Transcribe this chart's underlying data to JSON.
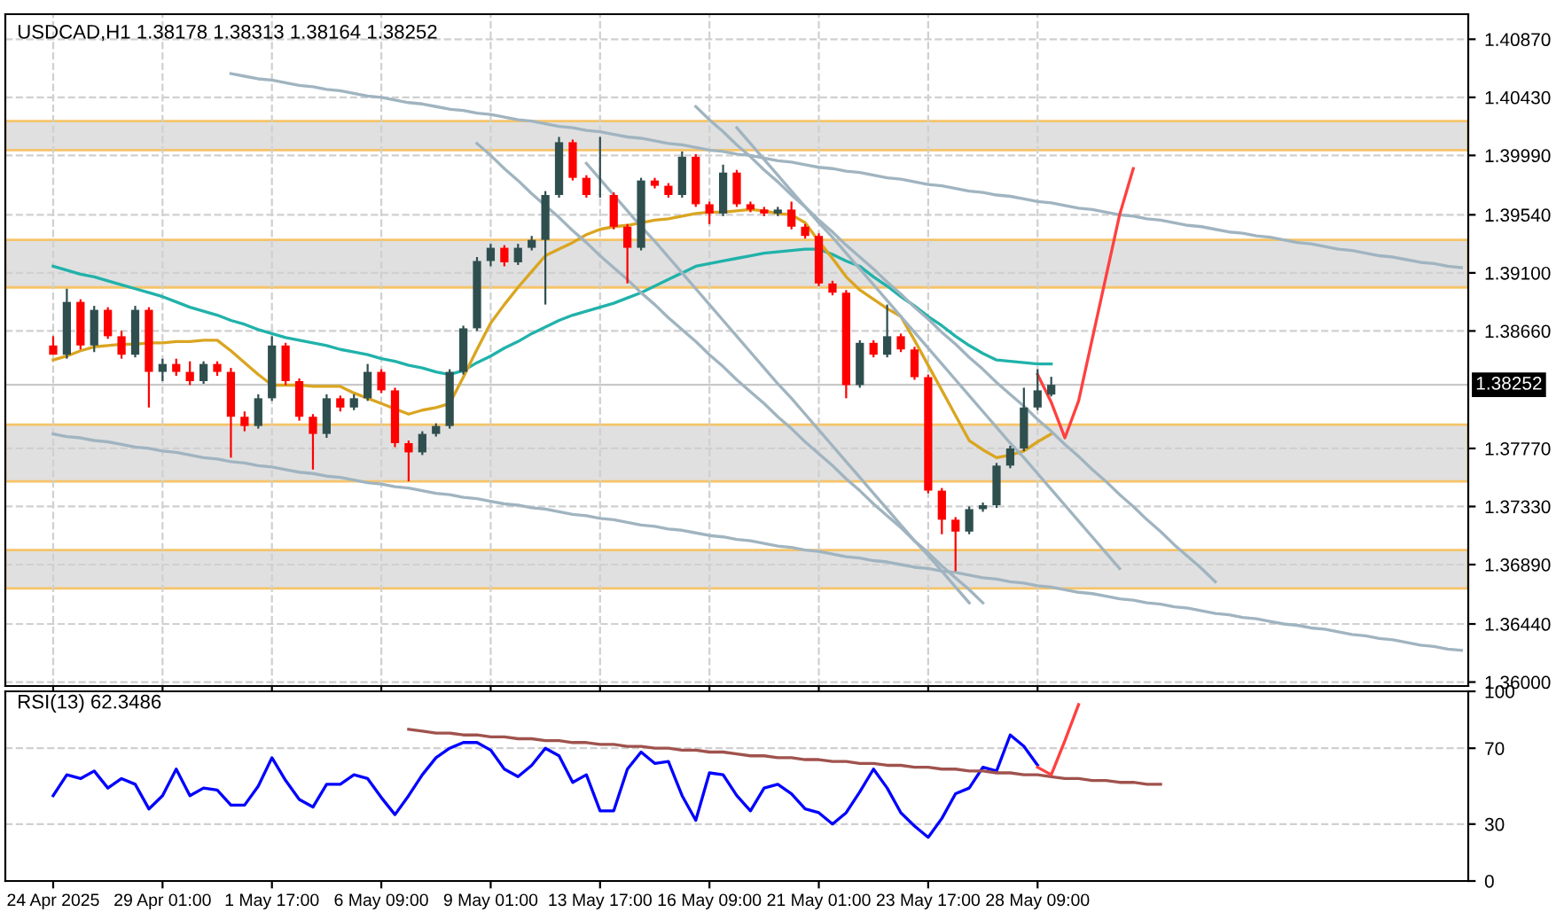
{
  "chart_data": [
    {
      "type": "candlestick",
      "title": "USDCAD,H1 1.38178 1.38313 1.38164 1.38252",
      "categories": [
        null,
        null,
        null,
        null,
        null,
        null,
        null,
        null,
        null,
        null,
        null,
        null,
        null,
        null,
        null,
        null,
        null,
        null,
        null,
        null,
        null,
        null,
        null,
        null,
        null,
        null,
        null,
        null,
        null,
        null,
        null,
        null,
        null,
        null,
        null,
        null,
        null,
        null,
        null,
        null,
        null,
        null,
        null,
        null,
        null,
        null,
        null,
        null,
        null,
        null,
        null,
        null,
        null,
        null,
        null,
        null,
        null,
        null,
        null,
        null,
        null,
        null,
        null,
        null,
        null,
        null,
        null,
        null,
        null,
        null,
        null,
        null,
        null,
        null,
        null,
        null,
        null,
        null,
        null,
        null,
        null,
        null,
        null,
        null,
        null,
        null,
        null,
        null,
        null,
        null,
        null,
        null,
        null,
        null,
        null,
        null,
        null,
        null,
        null,
        null,
        null,
        null,
        null,
        null
      ],
      "ohlc": [
        [
          1.3855,
          1.3862,
          1.3848,
          1.3848
        ],
        [
          1.3848,
          1.3898,
          1.3845,
          1.3888
        ],
        [
          1.3888,
          1.389,
          1.3852,
          1.3855
        ],
        [
          1.3855,
          1.3885,
          1.385,
          1.3882
        ],
        [
          1.3882,
          1.3884,
          1.386,
          1.3862
        ],
        [
          1.3862,
          1.3866,
          1.3845,
          1.3848
        ],
        [
          1.3848,
          1.3885,
          1.3846,
          1.3882
        ],
        [
          1.3882,
          1.3884,
          1.3808,
          1.3835
        ],
        [
          1.3835,
          1.3845,
          1.3828,
          1.3841
        ],
        [
          1.3841,
          1.3845,
          1.3832,
          1.3835
        ],
        [
          1.3835,
          1.3843,
          1.3825,
          1.3828
        ],
        [
          1.3828,
          1.3843,
          1.3826,
          1.3841
        ],
        [
          1.3841,
          1.3843,
          1.3832,
          1.3835
        ],
        [
          1.3835,
          1.3838,
          1.377,
          1.3801
        ],
        [
          1.3801,
          1.3805,
          1.379,
          1.3794
        ],
        [
          1.3794,
          1.3818,
          1.3792,
          1.3815
        ],
        [
          1.3815,
          1.3862,
          1.3813,
          1.3855
        ],
        [
          1.3855,
          1.3857,
          1.3825,
          1.3828
        ],
        [
          1.3828,
          1.383,
          1.3798,
          1.3801
        ],
        [
          1.3801,
          1.3803,
          1.3761,
          1.3788
        ],
        [
          1.3788,
          1.3818,
          1.3785,
          1.3815
        ],
        [
          1.3815,
          1.3817,
          1.3805,
          1.3808
        ],
        [
          1.3808,
          1.3818,
          1.3806,
          1.3815
        ],
        [
          1.3815,
          1.3841,
          1.3813,
          1.3835
        ],
        [
          1.3835,
          1.3837,
          1.3819,
          1.3821
        ],
        [
          1.3821,
          1.3823,
          1.3778,
          1.3781
        ],
        [
          1.3781,
          1.3783,
          1.3752,
          1.3774
        ],
        [
          1.3774,
          1.379,
          1.3772,
          1.3788
        ],
        [
          1.3788,
          1.3796,
          1.3786,
          1.3794
        ],
        [
          1.3794,
          1.3837,
          1.3792,
          1.3835
        ],
        [
          1.3835,
          1.387,
          1.3833,
          1.3868
        ],
        [
          1.3868,
          1.3922,
          1.3866,
          1.3919
        ],
        [
          1.3919,
          1.3932,
          1.3915,
          1.3929
        ],
        [
          1.3929,
          1.3931,
          1.3915,
          1.3918
        ],
        [
          1.3918,
          1.3932,
          1.3916,
          1.3929
        ],
        [
          1.3929,
          1.3938,
          1.3927,
          1.3935
        ],
        [
          1.3935,
          1.3972,
          1.3886,
          1.3969
        ],
        [
          1.3969,
          1.4013,
          1.3967,
          1.4009
        ],
        [
          1.4009,
          1.4011,
          1.398,
          1.3982
        ],
        [
          1.3982,
          1.3984,
          1.3967,
          1.3969
        ],
        [
          1.3969,
          1.4013,
          1.3967,
          1.3969
        ],
        [
          1.3969,
          1.3971,
          1.3943,
          1.3945
        ],
        [
          1.3945,
          1.3947,
          1.3902,
          1.3929
        ],
        [
          1.3929,
          1.3982,
          1.3927,
          1.398
        ],
        [
          1.398,
          1.3982,
          1.3974,
          1.3976
        ],
        [
          1.3976,
          1.3978,
          1.3967,
          1.3969
        ],
        [
          1.3969,
          1.4002,
          1.3967,
          1.3998
        ],
        [
          1.3998,
          1.4,
          1.396,
          1.3962
        ],
        [
          1.3962,
          1.3964,
          1.3947,
          1.3955
        ],
        [
          1.3955,
          1.3992,
          1.3953,
          1.3986
        ],
        [
          1.3986,
          1.3988,
          1.396,
          1.3962
        ],
        [
          1.3962,
          1.3964,
          1.3956,
          1.3958
        ],
        [
          1.3958,
          1.396,
          1.3953,
          1.3955
        ],
        [
          1.3955,
          1.396,
          1.3953,
          1.3958
        ],
        [
          1.3958,
          1.3964,
          1.3943,
          1.3945
        ],
        [
          1.3945,
          1.3947,
          1.3936,
          1.3938
        ],
        [
          1.3938,
          1.394,
          1.39,
          1.3902
        ],
        [
          1.3902,
          1.3904,
          1.3893,
          1.3895
        ],
        [
          1.3895,
          1.3897,
          1.3815,
          1.3825
        ],
        [
          1.3825,
          1.3859,
          1.3823,
          1.3857
        ],
        [
          1.3857,
          1.3859,
          1.3846,
          1.3848
        ],
        [
          1.3848,
          1.3886,
          1.3846,
          1.3862
        ],
        [
          1.3862,
          1.3864,
          1.385,
          1.3852
        ],
        [
          1.3852,
          1.3854,
          1.3829,
          1.3831
        ],
        [
          1.3831,
          1.3833,
          1.3743,
          1.3745
        ],
        [
          1.3745,
          1.3747,
          1.3712,
          1.3723
        ],
        [
          1.3723,
          1.3725,
          1.3684,
          1.3714
        ],
        [
          1.3714,
          1.3733,
          1.3712,
          1.3731
        ],
        [
          1.3731,
          1.3736,
          1.3729,
          1.3734
        ],
        [
          1.3734,
          1.3766,
          1.3732,
          1.3764
        ],
        [
          1.3764,
          1.3779,
          1.3762,
          1.3777
        ],
        [
          1.3777,
          1.3823,
          1.3775,
          1.3808
        ],
        [
          1.3808,
          1.3837,
          1.3806,
          1.3821
        ],
        [
          1.38178,
          1.38313,
          1.38164,
          1.38252
        ],
        null,
        null,
        null,
        null,
        null,
        null,
        null,
        null,
        null,
        null,
        null,
        null,
        null,
        null,
        null,
        null,
        null,
        null,
        null,
        null,
        null,
        null,
        null,
        null,
        null,
        null,
        null,
        null,
        null,
        null
      ],
      "colors": [
        "#ff0000",
        "#2f4f4f",
        "#ff0000",
        "#2f4f4f",
        "#ff0000",
        "#ff0000",
        "#2f4f4f",
        "#ff0000",
        "#2f4f4f",
        "#ff0000",
        "#ff0000",
        "#2f4f4f",
        "#ff0000",
        "#ff0000",
        "#ff0000",
        "#2f4f4f",
        "#2f4f4f",
        "#ff0000",
        "#ff0000",
        "#ff0000",
        "#2f4f4f",
        "#ff0000",
        "#2f4f4f",
        "#2f4f4f",
        "#ff0000",
        "#ff0000",
        "#ff0000",
        "#2f4f4f",
        "#2f4f4f",
        "#2f4f4f",
        "#2f4f4f",
        "#2f4f4f",
        "#2f4f4f",
        "#ff0000",
        "#2f4f4f",
        "#2f4f4f",
        "#2f4f4f",
        "#2f4f4f",
        "#ff0000",
        "#ff0000",
        "#2f4f4f",
        "#ff0000",
        "#ff0000",
        "#2f4f4f",
        "#ff0000",
        "#ff0000",
        "#2f4f4f",
        "#ff0000",
        "#ff0000",
        "#2f4f4f",
        "#ff0000",
        "#ff0000",
        "#ff0000",
        "#2f4f4f",
        "#ff0000",
        "#ff0000",
        "#ff0000",
        "#ff0000",
        "#ff0000",
        "#2f4f4f",
        "#ff0000",
        "#2f4f4f",
        "#ff0000",
        "#ff0000",
        "#ff0000",
        "#ff0000",
        "#ff0000",
        "#2f4f4f",
        "#2f4f4f",
        "#2f4f4f",
        "#2f4f4f",
        "#2f4f4f",
        "#2f4f4f",
        "#2f4f4f",
        null,
        null,
        null,
        null,
        null,
        null,
        null,
        null,
        null,
        null,
        null,
        null,
        null,
        null,
        null,
        null,
        null,
        null,
        null,
        null,
        null,
        null,
        null,
        null,
        null,
        null,
        null,
        null,
        null,
        null
      ],
      "series": [
        {
          "type": "line",
          "color": "#20b2aa",
          "values": [
            1.3915,
            1.3912,
            1.3909,
            1.3907,
            1.3904,
            1.3901,
            1.3898,
            1.3895,
            1.3892,
            1.3888,
            1.3884,
            1.3881,
            1.3878,
            1.3874,
            1.3871,
            1.3867,
            1.3864,
            1.3861,
            1.3859,
            1.3857,
            1.3855,
            1.3852,
            1.385,
            1.3848,
            1.3845,
            1.3843,
            1.384,
            1.3838,
            1.3835,
            1.3833,
            1.3836,
            1.3842,
            1.3847,
            1.3853,
            1.3858,
            1.3864,
            1.3869,
            1.3874,
            1.3878,
            1.3881,
            1.3884,
            1.3887,
            1.3891,
            1.3895,
            1.39,
            1.3905,
            1.391,
            1.3915,
            1.3917,
            1.3919,
            1.3921,
            1.3923,
            1.3925,
            1.3926,
            1.3927,
            1.3928,
            1.3928,
            1.3924,
            1.3919,
            1.3915,
            1.3907,
            1.39,
            1.3892,
            1.3885,
            1.3877,
            1.387,
            1.3862,
            1.3855,
            1.3849,
            1.3844,
            1.3843,
            1.3842,
            1.3841,
            1.3841,
            null,
            null,
            null,
            null,
            null,
            null,
            null,
            null,
            null,
            null,
            null,
            null,
            null,
            null,
            null,
            null,
            null,
            null,
            null,
            null,
            null,
            null,
            null,
            null,
            null,
            null,
            null,
            null,
            null,
            null
          ]
        },
        {
          "type": "line",
          "color": "#daa520",
          "values": [
            1.3844,
            1.3847,
            1.3851,
            1.3854,
            1.3855,
            1.3856,
            1.3856,
            1.3857,
            1.3857,
            1.3858,
            1.3858,
            1.3859,
            1.3859,
            1.3851,
            1.3842,
            1.3833,
            1.3825,
            1.3825,
            1.3825,
            1.3824,
            1.3824,
            1.3824,
            1.3819,
            1.3815,
            1.3811,
            1.3807,
            1.3803,
            1.3806,
            1.3808,
            1.3811,
            1.3831,
            1.3852,
            1.3872,
            1.3886,
            1.3899,
            1.3911,
            1.3923,
            1.3928,
            1.3933,
            1.3939,
            1.3943,
            1.3945,
            1.3946,
            1.3948,
            1.395,
            1.3951,
            1.3953,
            1.3955,
            1.3956,
            1.3956,
            1.3957,
            1.3958,
            1.3957,
            1.3955,
            1.3954,
            1.3948,
            1.3934,
            1.3921,
            1.3907,
            1.3897,
            1.389,
            1.3883,
            1.3877,
            1.3859,
            1.384,
            1.3821,
            1.3802,
            1.3783,
            1.3776,
            1.377,
            1.3772,
            1.3775,
            1.3782,
            1.3788,
            null,
            null,
            null,
            null,
            null,
            null,
            null,
            null,
            null,
            null,
            null,
            null,
            null,
            null,
            null,
            null,
            null,
            null,
            null,
            null,
            null,
            null,
            null,
            null,
            null,
            null,
            null,
            null,
            null,
            null
          ]
        },
        {
          "type": "line",
          "color": "#a0b4c0",
          "values": [
            null,
            null,
            null,
            null,
            null,
            null,
            null,
            null,
            null,
            null,
            null,
            null,
            null,
            1.4061,
            1.4059,
            1.4057,
            1.4056,
            1.4054,
            1.4052,
            1.4051,
            1.4049,
            1.4048,
            1.4046,
            1.4044,
            1.4043,
            1.4041,
            1.4039,
            1.4038,
            1.4036,
            1.4034,
            1.4033,
            1.4031,
            1.403,
            1.4028,
            1.4026,
            1.4025,
            1.4023,
            1.4021,
            1.402,
            1.4018,
            1.4017,
            1.4015,
            1.4013,
            1.4012,
            1.401,
            1.4008,
            1.4007,
            1.4005,
            1.4003,
            1.4002,
            1.4,
            1.3999,
            1.3997,
            1.3995,
            1.3994,
            1.3992,
            1.399,
            1.3989,
            1.3987,
            1.3986,
            1.3984,
            1.3982,
            1.3981,
            1.3979,
            1.3977,
            1.3976,
            1.3974,
            1.3972,
            1.3971,
            1.3969,
            1.3968,
            1.3966,
            1.3964,
            1.3963,
            1.3961,
            1.3959,
            1.3958,
            1.3956,
            1.3954,
            1.3953,
            1.3951,
            1.395,
            1.3948,
            1.3946,
            1.3945,
            1.3943,
            1.3941,
            1.394,
            1.3938,
            1.3937,
            1.3935,
            1.3933,
            1.3932,
            1.393,
            1.3928,
            1.3927,
            1.3925,
            1.3923,
            1.3922,
            1.392,
            1.3918,
            1.3917,
            1.3915,
            1.3914
          ]
        },
        {
          "type": "line",
          "color": "#a0b4c0",
          "values": [
            1.3788,
            1.3786,
            1.3785,
            1.3783,
            1.3782,
            1.378,
            1.3778,
            1.3777,
            1.3775,
            1.3774,
            1.3772,
            1.377,
            1.3769,
            1.3767,
            1.3766,
            1.3764,
            1.3763,
            1.3761,
            1.3759,
            1.3758,
            1.3756,
            1.3755,
            1.3753,
            1.3751,
            1.375,
            1.3748,
            1.3747,
            1.3745,
            1.3743,
            1.3742,
            1.374,
            1.3739,
            1.3737,
            1.3735,
            1.3734,
            1.3732,
            1.3731,
            1.3729,
            1.3727,
            1.3726,
            1.3724,
            1.3723,
            1.3721,
            1.3719,
            1.3718,
            1.3716,
            1.3715,
            1.3713,
            1.3711,
            1.371,
            1.3708,
            1.3707,
            1.3705,
            1.3703,
            1.3702,
            1.37,
            1.3699,
            1.3697,
            1.3695,
            1.3694,
            1.3692,
            1.3691,
            1.3689,
            1.3687,
            1.3686,
            1.3684,
            1.3683,
            1.3681,
            1.3679,
            1.3678,
            1.3676,
            1.3675,
            1.3673,
            1.3672,
            1.367,
            1.3668,
            1.3667,
            1.3665,
            1.3663,
            1.3662,
            1.366,
            1.3659,
            1.3657,
            1.3656,
            1.3654,
            1.3652,
            1.3651,
            1.3649,
            1.3648,
            1.3646,
            1.3644,
            1.3643,
            1.3641,
            1.364,
            1.3638,
            1.3636,
            1.3635,
            1.3633,
            1.3632,
            1.363,
            1.3628,
            1.3627,
            1.3625,
            1.3624
          ]
        },
        {
          "type": "line",
          "color": "#a0b4c0",
          "values": [
            null,
            null,
            null,
            null,
            null,
            null,
            null,
            null,
            null,
            null,
            null,
            null,
            null,
            null,
            null,
            null,
            null,
            null,
            null,
            null,
            null,
            null,
            null,
            null,
            null,
            null,
            null,
            null,
            null,
            null,
            null,
            1.4008,
            1.3999,
            1.3989,
            1.398,
            1.397,
            1.3961,
            1.3952,
            1.3942,
            1.3933,
            1.3923,
            1.3914,
            1.3905,
            1.3895,
            1.3886,
            1.3876,
            1.3867,
            1.3858,
            1.3848,
            1.3839,
            1.3829,
            1.382,
            1.3811,
            1.3801,
            1.3792,
            1.3782,
            1.3773,
            1.3764,
            1.3754,
            1.3745,
            1.3735,
            1.3726,
            1.3717,
            1.3707,
            1.3698,
            1.3688,
            1.3679,
            1.367,
            1.366,
            null,
            null,
            null,
            null,
            null,
            null,
            null,
            null,
            null,
            null,
            null,
            null,
            null,
            null,
            null,
            null,
            null,
            null,
            null,
            null,
            null,
            null,
            null,
            null,
            null,
            null,
            null,
            null,
            null,
            null,
            null,
            null,
            null,
            null,
            null
          ]
        },
        {
          "type": "line",
          "color": "#a0b4c0",
          "values": [
            null,
            null,
            null,
            null,
            null,
            null,
            null,
            null,
            null,
            null,
            null,
            null,
            null,
            null,
            null,
            null,
            null,
            null,
            null,
            null,
            null,
            null,
            null,
            null,
            null,
            null,
            null,
            null,
            null,
            null,
            null,
            null,
            null,
            null,
            null,
            null,
            null,
            null,
            null,
            1.3993,
            1.3981,
            1.3969,
            1.3957,
            1.3945,
            1.3934,
            1.3922,
            1.391,
            1.3898,
            1.3886,
            1.3874,
            1.3862,
            1.385,
            1.3838,
            1.3826,
            1.3815,
            1.3803,
            1.3791,
            1.3779,
            1.3767,
            1.3755,
            1.3743,
            1.3731,
            1.3719,
            1.3707,
            1.3696,
            1.3684,
            1.3672,
            1.366,
            null,
            null,
            null,
            null,
            null,
            null,
            null,
            null,
            null,
            null,
            null,
            null,
            null,
            null,
            null,
            null,
            null,
            null,
            null,
            null,
            null,
            null,
            null,
            null,
            null,
            null,
            null,
            null,
            null,
            null,
            null,
            null,
            null,
            null,
            null,
            null
          ]
        },
        {
          "type": "line",
          "color": "#a0b4c0",
          "values": [
            null,
            null,
            null,
            null,
            null,
            null,
            null,
            null,
            null,
            null,
            null,
            null,
            null,
            null,
            null,
            null,
            null,
            null,
            null,
            null,
            null,
            null,
            null,
            null,
            null,
            null,
            null,
            null,
            null,
            null,
            null,
            null,
            null,
            null,
            null,
            null,
            null,
            null,
            null,
            null,
            null,
            null,
            null,
            null,
            null,
            null,
            null,
            1.4036,
            1.4026,
            1.4017,
            1.4007,
            1.3998,
            1.3988,
            1.3979,
            1.3969,
            1.396,
            1.395,
            1.3941,
            1.3931,
            1.3922,
            1.3913,
            1.3903,
            1.3894,
            1.3884,
            1.3875,
            1.3865,
            1.3856,
            1.3846,
            1.3837,
            1.3827,
            1.3818,
            1.3809,
            1.3799,
            1.379,
            1.378,
            1.3771,
            1.3761,
            1.3752,
            1.3742,
            1.3733,
            1.3723,
            1.3714,
            1.3704,
            1.3695,
            1.3686,
            1.3676,
            null,
            null,
            null,
            null,
            null,
            null,
            null,
            null,
            null,
            null,
            null,
            null,
            null,
            null,
            null,
            null,
            null,
            null
          ]
        },
        {
          "type": "line",
          "color": "#a0b4c0",
          "values": [
            null,
            null,
            null,
            null,
            null,
            null,
            null,
            null,
            null,
            null,
            null,
            null,
            null,
            null,
            null,
            null,
            null,
            null,
            null,
            null,
            null,
            null,
            null,
            null,
            null,
            null,
            null,
            null,
            null,
            null,
            null,
            null,
            null,
            null,
            null,
            null,
            null,
            null,
            null,
            null,
            null,
            null,
            null,
            null,
            null,
            null,
            null,
            null,
            null,
            null,
            1.402,
            1.4008,
            1.3996,
            1.3984,
            1.3972,
            1.396,
            1.3948,
            1.3937,
            1.3925,
            1.3913,
            1.3901,
            1.3889,
            1.3877,
            1.3865,
            1.3853,
            1.3841,
            1.3829,
            1.3817,
            1.3805,
            1.3793,
            1.3781,
            1.377,
            1.3758,
            1.3746,
            1.3734,
            1.3722,
            1.371,
            1.3698,
            1.3686,
            null,
            null,
            null,
            null,
            null,
            null,
            null,
            null,
            null,
            null,
            null,
            null,
            null,
            null,
            null,
            null,
            null,
            null,
            null,
            null,
            null,
            null,
            null,
            null,
            null
          ]
        },
        {
          "type": "line",
          "color": "#ff4040",
          "values": [
            null,
            null,
            null,
            null,
            null,
            null,
            null,
            null,
            null,
            null,
            null,
            null,
            null,
            null,
            null,
            null,
            null,
            null,
            null,
            null,
            null,
            null,
            null,
            null,
            null,
            null,
            null,
            null,
            null,
            null,
            null,
            null,
            null,
            null,
            null,
            null,
            null,
            null,
            null,
            null,
            null,
            null,
            null,
            null,
            null,
            null,
            null,
            null,
            null,
            null,
            null,
            null,
            null,
            null,
            null,
            null,
            null,
            null,
            null,
            null,
            null,
            null,
            null,
            null,
            null,
            null,
            null,
            null,
            null,
            null,
            null,
            null,
            1.3833,
            1.3812,
            1.3785,
            1.3813,
            1.386,
            1.3907,
            1.3954,
            1.3989,
            null,
            null,
            null,
            null,
            null,
            null,
            null,
            null,
            null,
            null,
            null,
            null,
            null,
            null,
            null,
            null,
            null,
            null,
            null,
            null,
            null,
            null,
            null,
            null
          ]
        }
      ],
      "bands": [
        {
          "axis": "y",
          "from": 1.4003,
          "to": 1.4025,
          "color": "#e0e0e0"
        },
        {
          "axis": "y",
          "from": 1.3899,
          "to": 1.3935,
          "color": "#e0e0e0"
        },
        {
          "axis": "y",
          "from": 1.3752,
          "to": 1.3795,
          "color": "#e0e0e0"
        },
        {
          "axis": "y",
          "from": 1.3671,
          "to": 1.37,
          "color": "#e0e0e0"
        }
      ],
      "ref_lines": [
        {
          "axis": "y",
          "value": 1.38252,
          "label": "1.38252",
          "color": "#c8c8c8"
        }
      ],
      "ylim": [
        1.3597,
        1.4106
      ],
      "yticks": [
        {
          "value": 1.4087,
          "label": "1.40870"
        },
        {
          "value": 1.4043,
          "label": "1.40430"
        },
        {
          "value": 1.3999,
          "label": "1.39990"
        },
        {
          "value": 1.3954,
          "label": "1.39540"
        },
        {
          "value": 1.391,
          "label": "1.39100"
        },
        {
          "value": 1.3866,
          "label": "1.38660"
        },
        {
          "value": 1.3777,
          "label": "1.37770"
        },
        {
          "value": 1.3733,
          "label": "1.37330"
        },
        {
          "value": 1.3689,
          "label": "1.36890"
        },
        {
          "value": 1.3644,
          "label": "1.36440"
        },
        {
          "value": 1.36,
          "label": "1.36000"
        }
      ],
      "grid": true,
      "tick_labels": "y"
    },
    {
      "type": "line",
      "title": "RSI(13) 62.3486",
      "categories": [
        "24 Apr 2025",
        null,
        null,
        null,
        null,
        null,
        null,
        null,
        "29 Apr 01:00",
        null,
        null,
        null,
        null,
        null,
        null,
        null,
        "1 May 17:00",
        null,
        null,
        null,
        null,
        null,
        null,
        null,
        "6 May 09:00",
        null,
        null,
        null,
        null,
        null,
        null,
        null,
        "9 May 01:00",
        null,
        null,
        null,
        null,
        null,
        null,
        null,
        "13 May 17:00",
        null,
        null,
        null,
        null,
        null,
        null,
        null,
        "16 May 09:00",
        null,
        null,
        null,
        null,
        null,
        null,
        null,
        "21 May 01:00",
        null,
        null,
        null,
        null,
        null,
        null,
        null,
        "23 May 17:00",
        null,
        null,
        null,
        null,
        null,
        null,
        null,
        "28 May 09:00",
        null,
        null,
        null,
        null,
        null,
        null,
        null,
        null,
        null,
        null,
        null,
        null,
        null,
        null,
        null,
        null,
        null,
        null,
        null,
        null,
        null,
        null,
        null,
        null,
        null,
        null,
        null,
        null,
        null,
        null,
        null
      ],
      "series": [
        {
          "color": "#0000ff",
          "values": [
            45,
            56,
            54,
            58,
            49,
            54,
            51,
            38,
            45,
            59,
            45,
            49,
            48,
            40,
            40,
            50,
            65,
            53,
            43,
            39,
            51,
            51,
            56,
            54,
            44,
            35,
            45,
            56,
            65,
            70,
            73,
            73,
            69,
            59,
            55,
            61,
            70,
            66,
            52,
            56,
            37,
            37,
            59,
            68,
            62,
            63,
            45,
            32,
            57,
            56,
            45,
            37,
            49,
            51,
            46,
            38,
            36,
            30,
            36,
            47,
            59,
            49,
            36,
            29,
            23,
            33,
            46,
            49,
            60,
            58,
            77,
            71,
            61,
            null,
            null,
            null,
            null,
            null,
            null,
            null,
            null,
            null,
            null,
            null,
            null,
            null,
            null,
            null,
            null,
            null,
            null,
            null,
            null,
            null,
            null,
            null,
            null,
            null,
            null,
            null,
            null,
            null,
            null,
            null
          ]
        },
        {
          "color": "#a0524d",
          "values": [
            null,
            null,
            null,
            null,
            null,
            null,
            null,
            null,
            null,
            null,
            null,
            null,
            null,
            null,
            null,
            null,
            null,
            null,
            null,
            null,
            null,
            null,
            null,
            null,
            null,
            null,
            80,
            79,
            78,
            78,
            77,
            77,
            76,
            76,
            75,
            75,
            74,
            74,
            73,
            73,
            72,
            72,
            71,
            71,
            70,
            70,
            69,
            69,
            68,
            68,
            67,
            66,
            66,
            65,
            65,
            64,
            64,
            63,
            63,
            62,
            62,
            61,
            61,
            60,
            60,
            59,
            59,
            58,
            58,
            57,
            57,
            56,
            56,
            55,
            54,
            54,
            53,
            53,
            52,
            52,
            51,
            51,
            null,
            null,
            null,
            null,
            null,
            null,
            null,
            null,
            null,
            null,
            null,
            null,
            null,
            null,
            null,
            null,
            null,
            null,
            null,
            null,
            null,
            null
          ]
        },
        {
          "color": "#ff4040",
          "values": [
            null,
            null,
            null,
            null,
            null,
            null,
            null,
            null,
            null,
            null,
            null,
            null,
            null,
            null,
            null,
            null,
            null,
            null,
            null,
            null,
            null,
            null,
            null,
            null,
            null,
            null,
            null,
            null,
            null,
            null,
            null,
            null,
            null,
            null,
            null,
            null,
            null,
            null,
            null,
            null,
            null,
            null,
            null,
            null,
            null,
            null,
            null,
            null,
            null,
            null,
            null,
            null,
            null,
            null,
            null,
            null,
            null,
            null,
            null,
            null,
            null,
            null,
            null,
            null,
            null,
            null,
            null,
            null,
            null,
            null,
            null,
            null,
            60,
            56,
            74,
            93,
            null,
            null,
            null,
            null,
            null,
            null,
            null,
            null,
            null,
            null,
            null,
            null,
            null,
            null,
            null,
            null,
            null,
            null,
            null,
            null,
            null,
            null,
            null,
            null,
            null,
            null,
            null,
            null
          ]
        }
      ],
      "ylim": [
        0,
        100
      ],
      "yticks": [
        0,
        30,
        70,
        100
      ],
      "grid": "y"
    }
  ]
}
